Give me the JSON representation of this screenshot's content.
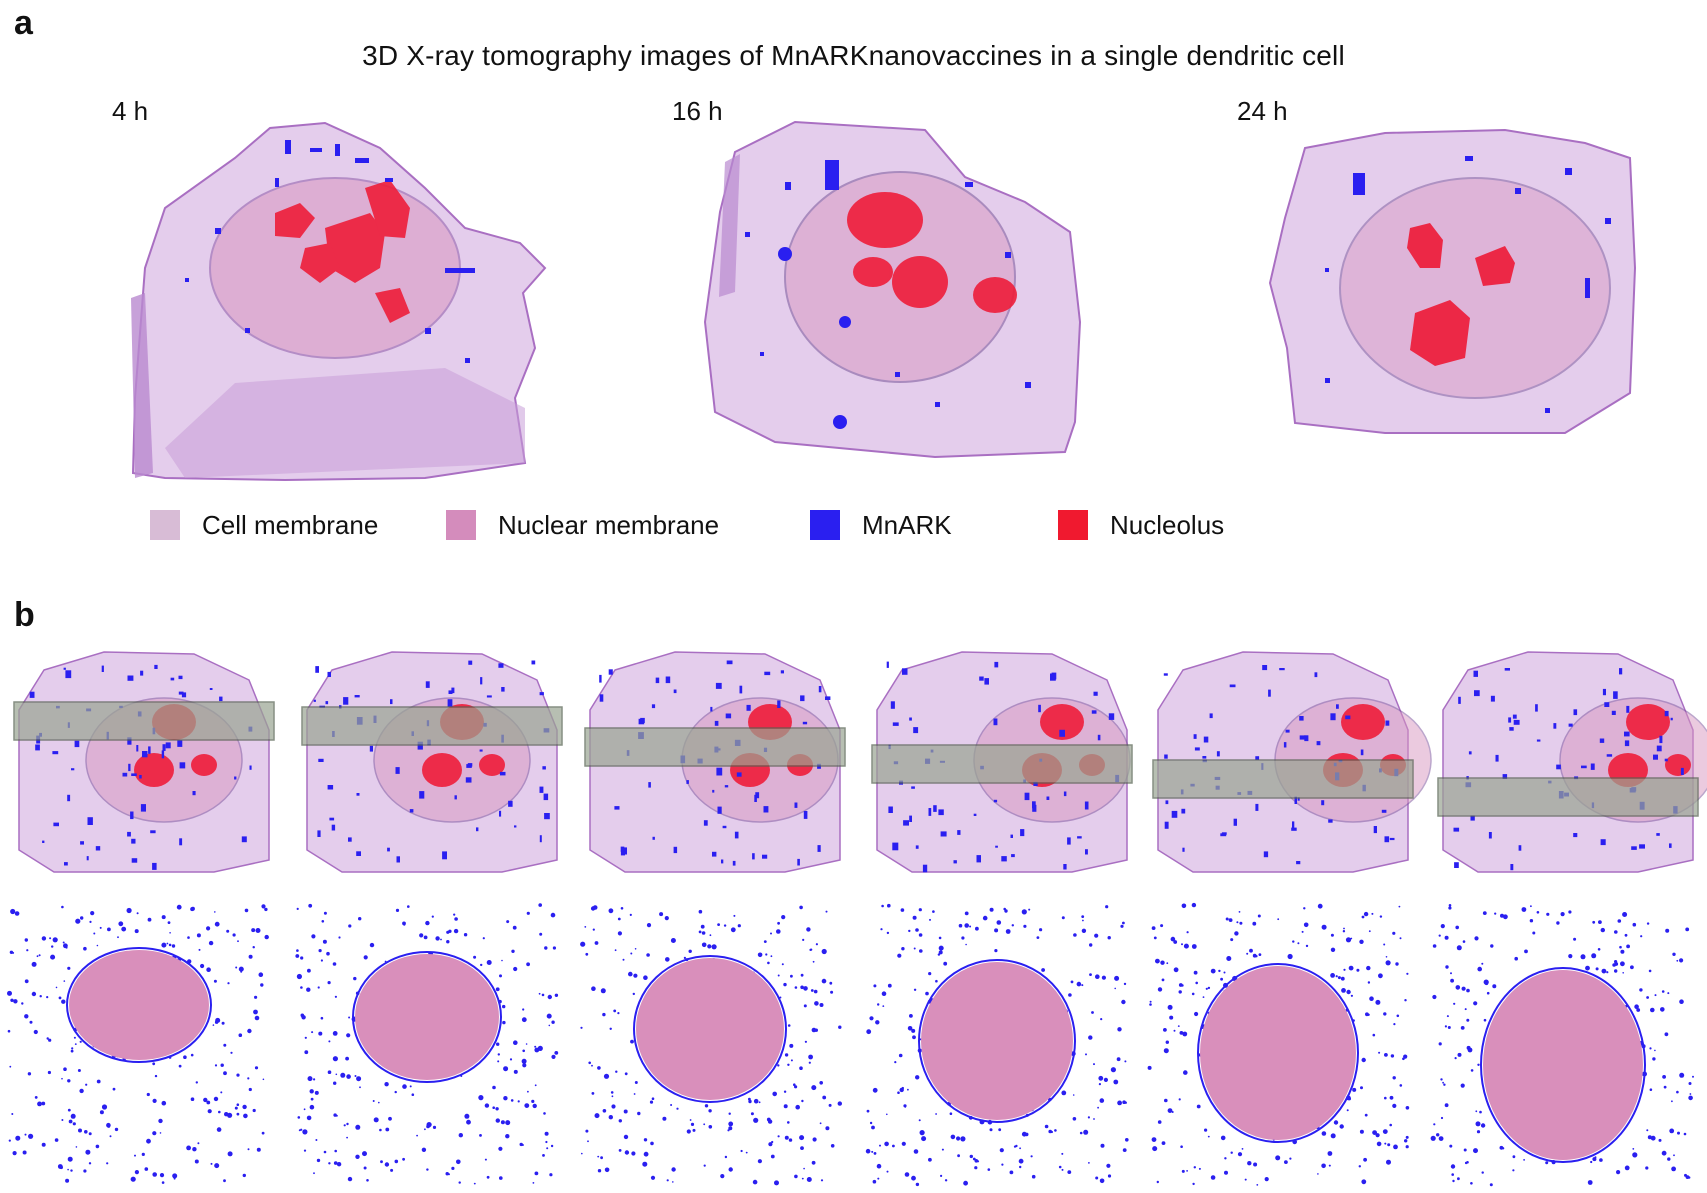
{
  "panel_a": {
    "letter": "a",
    "title": "3D X-ray tomography images of MnARKnanovaccines in a single dendritic cell",
    "timepoints": [
      "4 h",
      "16 h",
      "24 h"
    ],
    "legend": [
      {
        "label": "Cell membrane",
        "color": "#d8bcd6"
      },
      {
        "label": "Nuclear membrane",
        "color": "#d48cbc"
      },
      {
        "label": "MnARK",
        "color": "#2a1ff0"
      },
      {
        "label": "Nucleolus",
        "color": "#f0192f"
      }
    ]
  },
  "panel_b": {
    "letter": "b",
    "image_count": 6
  },
  "colors": {
    "cell_membrane": "#c99ed8",
    "cell_membrane_light": "#e4cdec",
    "nuclear_membrane": "#d896c0",
    "mnark": "#2a1ff0",
    "nucleolus": "#ee1d3a",
    "slice_plane": "#9aa592",
    "section_nucleus": "#d98fbb"
  }
}
